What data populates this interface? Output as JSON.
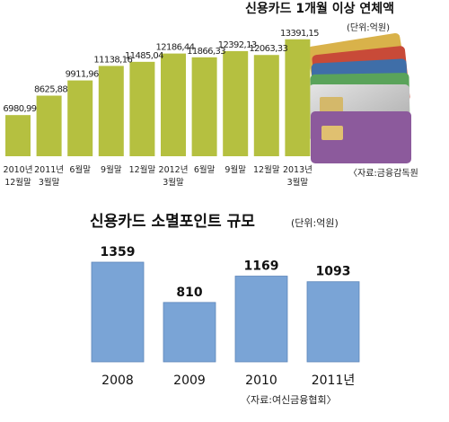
{
  "chart_data": [
    {
      "type": "bar",
      "title": "신용카드 1개월 이상 연체액",
      "unit": "(단위:억원)",
      "source": "〈자료:금융감독원",
      "categories": [
        [
          "2010년",
          "12월말"
        ],
        [
          "2011년",
          "3월말"
        ],
        [
          "6월말"
        ],
        [
          "9월말"
        ],
        [
          "12월말"
        ],
        [
          "2012년",
          "3월말"
        ],
        [
          "6월말"
        ],
        [
          "9월말"
        ],
        [
          "12월말"
        ],
        [
          "2013년",
          "3월말"
        ]
      ],
      "values": [
        6980.99,
        8625.88,
        9911.96,
        11138.16,
        11485.04,
        12186.44,
        11866.33,
        12392.13,
        12063.33,
        13391.15
      ],
      "value_labels": [
        "6980,99",
        "8625,88",
        "9911,96",
        "11138,16",
        "11485,04",
        "12186,44",
        "11866,33",
        "12392,13",
        "12063,33",
        "13391,15"
      ],
      "ylim": [
        3500,
        13600
      ],
      "bar_color": "#b5c040",
      "grid": false
    },
    {
      "type": "bar",
      "title": "신용카드 소멸포인트 규모",
      "unit": "(단위:억원)",
      "source": "〈자료:여신금융협회〉",
      "categories": [
        "2008",
        "2009",
        "2010",
        "2011년"
      ],
      "values": [
        1359,
        810,
        1169,
        1093
      ],
      "value_labels": [
        "1359",
        "810",
        "1169",
        "1093"
      ],
      "ylim": [
        0,
        1400
      ],
      "bar_color": "#7aa4d6",
      "grid": false
    }
  ]
}
